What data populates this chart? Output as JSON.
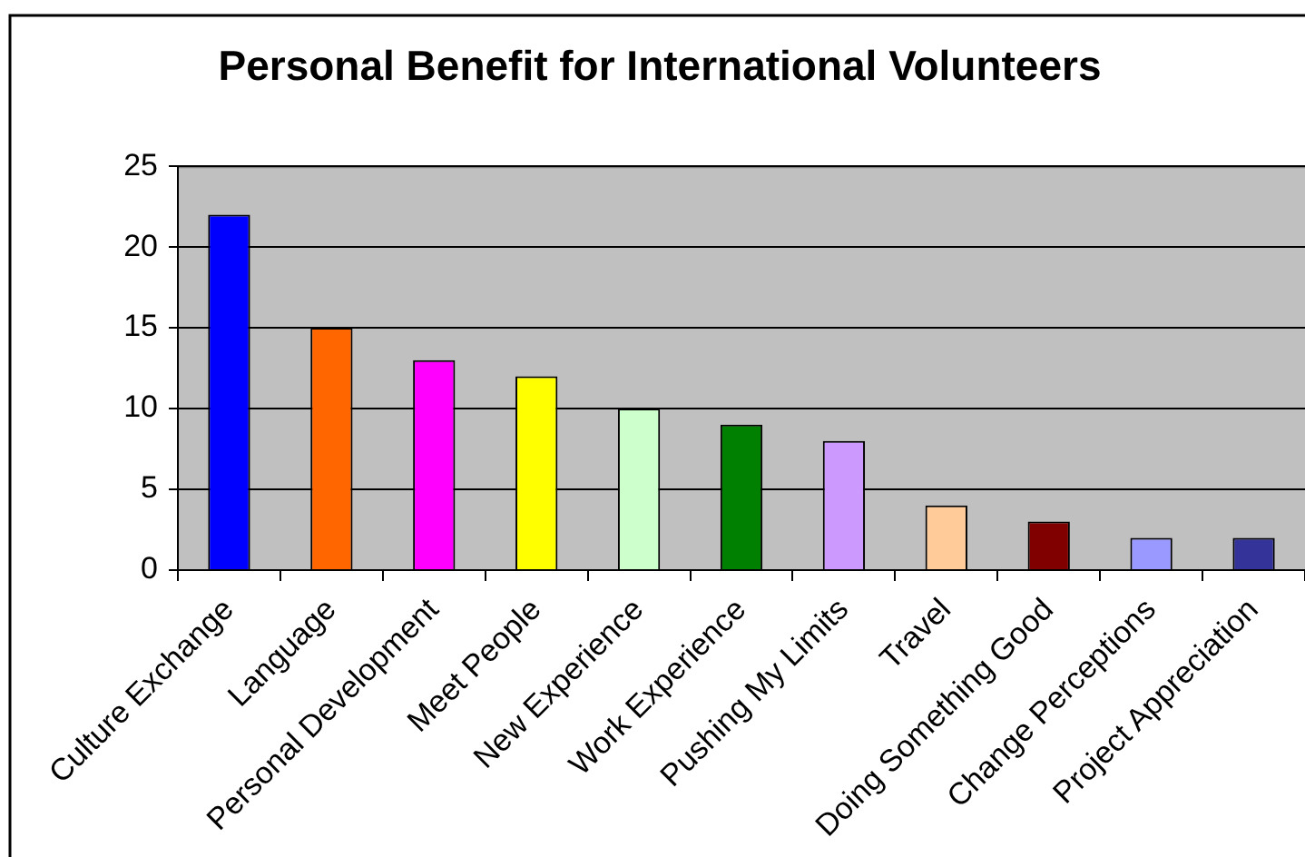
{
  "chart_data": {
    "type": "bar",
    "title": "Personal Benefit for International Volunteers",
    "categories": [
      "Culture Exchange",
      "Language",
      "Personal Development",
      "Meet People",
      "New Experience",
      "Work Experience",
      "Pushing My Limits",
      "Travel",
      "Doing Something Good",
      "Change Perceptions",
      "Project Appreciation"
    ],
    "values": [
      22,
      15,
      13,
      12,
      10,
      9,
      8,
      4,
      3,
      2,
      2
    ],
    "colors": [
      "#0000ff",
      "#ff6600",
      "#ff00ff",
      "#ffff00",
      "#ccffcc",
      "#008000",
      "#cc99ff",
      "#ffcc99",
      "#800000",
      "#9999ff",
      "#333399"
    ],
    "ylim": [
      0,
      25
    ],
    "yticks": [
      0,
      5,
      10,
      15,
      20,
      25
    ],
    "grid": "y"
  }
}
